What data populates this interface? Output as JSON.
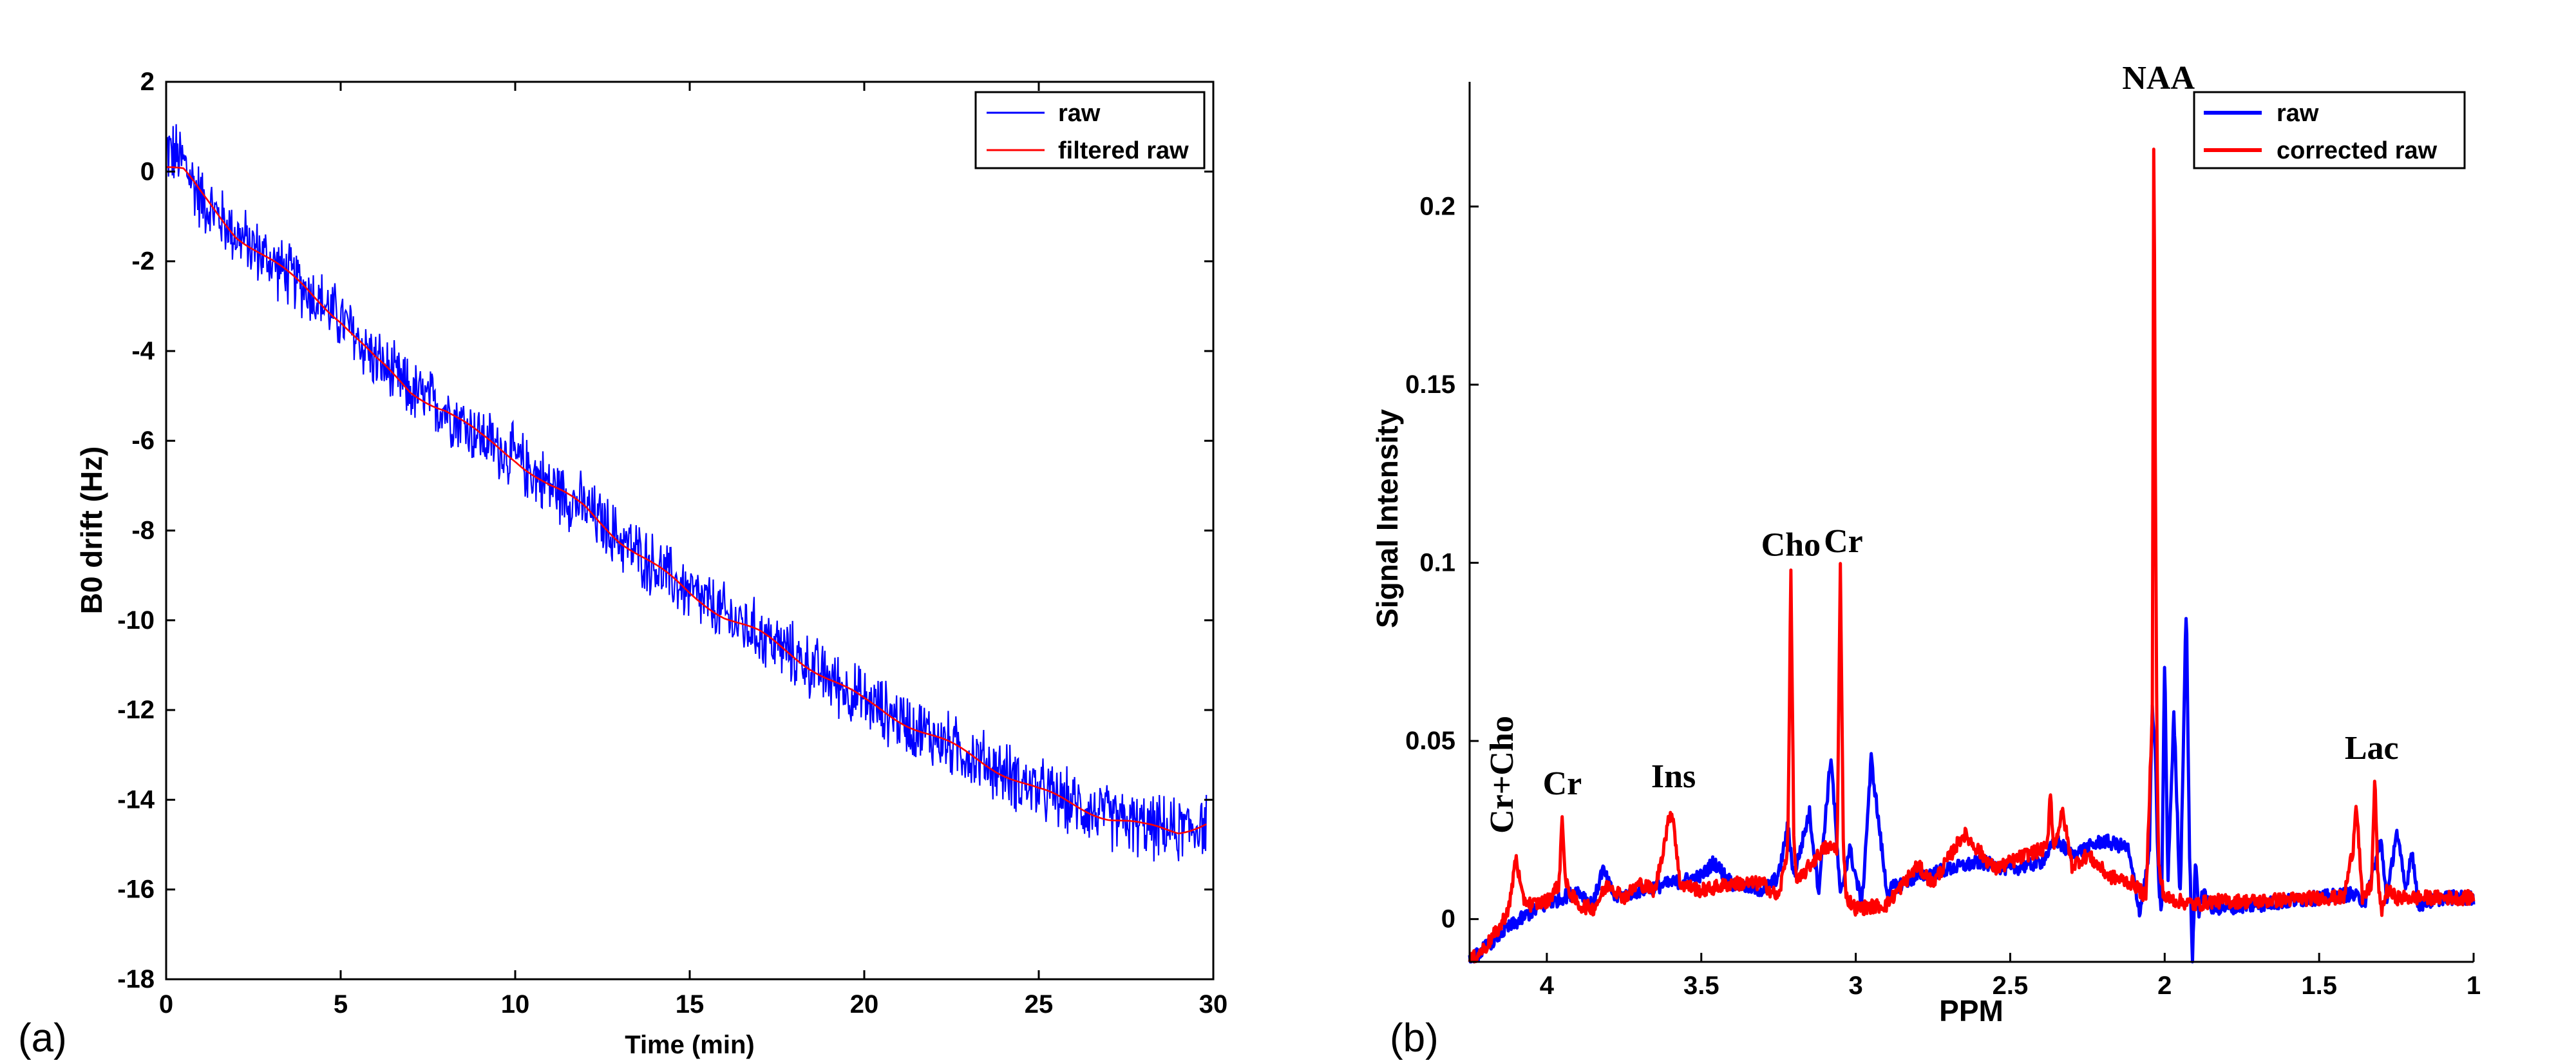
{
  "panel_labels": {
    "a": "(a)",
    "b": "(b)"
  },
  "chart_data": [
    {
      "type": "line",
      "panel": "a",
      "title": "",
      "xlabel": "Time (min)",
      "ylabel": "B0 drift (Hz)",
      "xlim": [
        0,
        30
      ],
      "ylim": [
        -18,
        2
      ],
      "xticks": [
        0,
        5,
        10,
        15,
        20,
        25,
        30
      ],
      "xtick_labels": [
        "0",
        "5",
        "10",
        "15",
        "20",
        "25",
        "30"
      ],
      "yticks": [
        2,
        0,
        -2,
        -4,
        -6,
        -8,
        -10,
        -12,
        -14,
        -16,
        -18
      ],
      "ytick_labels": [
        "2",
        "0",
        "-2",
        "-4",
        "-6",
        "-8",
        "-10",
        "-12",
        "-14",
        "-16",
        "-18"
      ],
      "legend": {
        "position": "top-right",
        "entries": [
          "raw",
          "filtered raw"
        ]
      },
      "series": [
        {
          "name": "raw",
          "color": "#0000ff",
          "style": "noisy",
          "noise_amplitude": 0.85,
          "x": [
            0,
            0.5,
            1,
            2,
            3,
            4,
            5,
            6,
            7,
            8,
            9,
            10,
            11,
            12,
            13,
            14,
            15,
            16,
            17,
            18,
            19,
            20,
            21,
            22,
            23,
            24,
            25,
            26,
            27,
            28,
            29,
            29.8
          ],
          "values": [
            0.5,
            0.2,
            -0.6,
            -1.4,
            -2.0,
            -2.6,
            -3.3,
            -4.2,
            -4.9,
            -5.3,
            -5.9,
            -6.4,
            -7.0,
            -7.5,
            -8.2,
            -8.8,
            -9.4,
            -9.9,
            -10.3,
            -10.8,
            -11.3,
            -11.8,
            -12.2,
            -12.6,
            -13.0,
            -13.4,
            -13.8,
            -14.1,
            -14.4,
            -14.6,
            -14.7,
            -14.5
          ]
        },
        {
          "name": "filtered raw",
          "color": "#ff0000",
          "style": "smooth",
          "x": [
            0,
            0.5,
            1,
            2,
            3,
            4,
            5,
            6,
            7,
            8,
            9,
            10,
            11,
            12,
            13,
            14,
            15,
            16,
            17,
            18,
            19,
            20,
            21,
            22,
            23,
            24,
            25,
            26,
            27,
            28,
            29,
            29.8
          ],
          "values": [
            0.1,
            0.0,
            -0.5,
            -1.4,
            -2.0,
            -2.6,
            -3.3,
            -4.2,
            -4.9,
            -5.3,
            -5.9,
            -6.4,
            -7.0,
            -7.5,
            -8.2,
            -8.8,
            -9.4,
            -9.9,
            -10.3,
            -10.8,
            -11.3,
            -11.8,
            -12.2,
            -12.6,
            -13.0,
            -13.4,
            -13.8,
            -14.1,
            -14.4,
            -14.6,
            -14.7,
            -14.5
          ]
        }
      ]
    },
    {
      "type": "line",
      "panel": "b",
      "title": "",
      "xlabel": "PPM",
      "ylabel": "Signal Intensity",
      "xlim": [
        4.25,
        1
      ],
      "x_reversed": true,
      "ylim": [
        -0.012,
        0.235
      ],
      "xticks": [
        4,
        3.5,
        3,
        2.5,
        2,
        1.5,
        1
      ],
      "xtick_labels": [
        "4",
        "3.5",
        "3",
        "2.5",
        "2",
        "1.5",
        "1"
      ],
      "yticks": [
        0,
        0.05,
        0.1,
        0.15,
        0.2
      ],
      "ytick_labels": [
        "0",
        "0.05",
        "0.1",
        "0.15",
        "0.2"
      ],
      "legend": {
        "position": "top-right",
        "entries": [
          "raw",
          "corrected raw"
        ]
      },
      "annotations": [
        {
          "text": "Cr+Cho",
          "x": 4.11,
          "y": 0.024,
          "rotated": true
        },
        {
          "text": "Cr",
          "x": 3.95,
          "y": 0.035
        },
        {
          "text": "Ins",
          "x": 3.59,
          "y": 0.037
        },
        {
          "text": "Cho",
          "x": 3.21,
          "y": 0.102
        },
        {
          "text": "Cr",
          "x": 3.04,
          "y": 0.103
        },
        {
          "text": "NAA",
          "x": 2.02,
          "y": 0.233
        },
        {
          "text": "Lac",
          "x": 1.33,
          "y": 0.045
        }
      ],
      "series": [
        {
          "name": "raw",
          "color": "#0000ff",
          "x": [
            4.25,
            4.15,
            4.05,
            4.0,
            3.95,
            3.9,
            3.85,
            3.82,
            3.78,
            3.7,
            3.6,
            3.5,
            3.46,
            3.4,
            3.3,
            3.25,
            3.22,
            3.2,
            3.15,
            3.12,
            3.08,
            3.05,
            3.02,
            2.98,
            2.95,
            2.9,
            2.8,
            2.7,
            2.6,
            2.5,
            2.4,
            2.35,
            2.3,
            2.2,
            2.12,
            2.08,
            2.05,
            2.04,
            2.03,
            2.02,
            2.01,
            2.0,
            1.99,
            1.97,
            1.95,
            1.93,
            1.92,
            1.91,
            1.9,
            1.89,
            1.88,
            1.85,
            1.7,
            1.5,
            1.4,
            1.35,
            1.3,
            1.28,
            1.25,
            1.22,
            1.2,
            1.18,
            1.1,
            1.0
          ],
          "values": [
            -0.012,
            -0.004,
            0.002,
            0.004,
            0.006,
            0.008,
            0.004,
            0.014,
            0.006,
            0.008,
            0.01,
            0.012,
            0.016,
            0.01,
            0.008,
            0.012,
            0.026,
            0.012,
            0.03,
            0.008,
            0.046,
            0.006,
            0.02,
            0.004,
            0.045,
            0.008,
            0.012,
            0.014,
            0.016,
            0.014,
            0.016,
            0.022,
            0.018,
            0.022,
            0.02,
            0.002,
            0.018,
            0.06,
            0.045,
            0.01,
            0.002,
            0.075,
            0.01,
            0.058,
            0.005,
            0.09,
            0.02,
            -0.012,
            0.018,
            0.001,
            0.008,
            0.003,
            0.004,
            0.006,
            0.007,
            0.005,
            0.022,
            0.005,
            0.025,
            0.008,
            0.02,
            0.004,
            0.006,
            0.006
          ]
        },
        {
          "name": "corrected raw",
          "color": "#ff0000",
          "x": [
            4.25,
            4.2,
            4.15,
            4.12,
            4.1,
            4.08,
            4.05,
            4.0,
            3.96,
            3.95,
            3.94,
            3.9,
            3.85,
            3.8,
            3.75,
            3.7,
            3.65,
            3.6,
            3.59,
            3.57,
            3.5,
            3.4,
            3.3,
            3.25,
            3.22,
            3.21,
            3.2,
            3.19,
            3.15,
            3.1,
            3.06,
            3.05,
            3.04,
            3.03,
            3.0,
            2.9,
            2.8,
            2.75,
            2.65,
            2.55,
            2.45,
            2.38,
            2.37,
            2.36,
            2.33,
            2.3,
            2.25,
            2.18,
            2.1,
            2.06,
            2.04,
            2.035,
            2.03,
            2.025,
            2.02,
            2.01,
            2.0,
            1.95,
            1.9,
            1.85,
            1.7,
            1.5,
            1.42,
            1.39,
            1.38,
            1.36,
            1.33,
            1.32,
            1.31,
            1.3,
            1.28,
            1.25,
            1.2,
            1.1,
            1.0
          ],
          "values": [
            -0.012,
            -0.008,
            -0.002,
            0.004,
            0.018,
            0.006,
            0.004,
            0.005,
            0.01,
            0.03,
            0.01,
            0.004,
            0.003,
            0.01,
            0.006,
            0.01,
            0.008,
            0.03,
            0.028,
            0.01,
            0.008,
            0.01,
            0.01,
            0.006,
            0.02,
            0.098,
            0.02,
            0.01,
            0.015,
            0.02,
            0.02,
            0.1,
            0.02,
            0.006,
            0.003,
            0.004,
            0.015,
            0.01,
            0.024,
            0.014,
            0.018,
            0.02,
            0.037,
            0.02,
            0.03,
            0.015,
            0.018,
            0.012,
            0.01,
            0.006,
            0.06,
            0.227,
            0.12,
            0.05,
            0.015,
            0.01,
            0.006,
            0.005,
            0.004,
            0.005,
            0.005,
            0.006,
            0.006,
            0.02,
            0.034,
            0.005,
            0.01,
            0.04,
            0.012,
            0.002,
            0.008,
            0.006,
            0.006,
            0.006,
            0.006
          ]
        }
      ]
    }
  ]
}
